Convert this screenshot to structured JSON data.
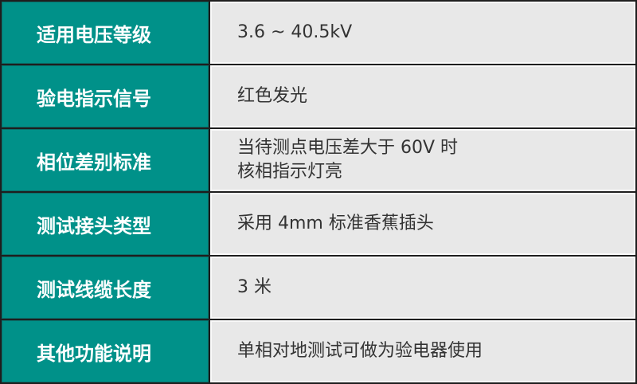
{
  "colors": {
    "label_bg": "#009189",
    "value_bg": "#e8e8e8",
    "border": "#1e1e1e"
  },
  "rows": [
    {
      "label": "适用电压等级",
      "value": [
        "3.6 ~ 40.5kV"
      ]
    },
    {
      "label": "验电指示信号",
      "value": [
        "红色发光"
      ]
    },
    {
      "label": "相位差别标准",
      "value": [
        "当待测点电压差大于 60V 时",
        "核相指示灯亮"
      ]
    },
    {
      "label": "测试接头类型",
      "value": [
        "采用 4mm 标准香蕉插头"
      ]
    },
    {
      "label": "测试线缆长度",
      "value": [
        "3 米"
      ]
    },
    {
      "label": "其他功能说明",
      "value": [
        "单相对地测试可做为验电器使用"
      ]
    }
  ]
}
